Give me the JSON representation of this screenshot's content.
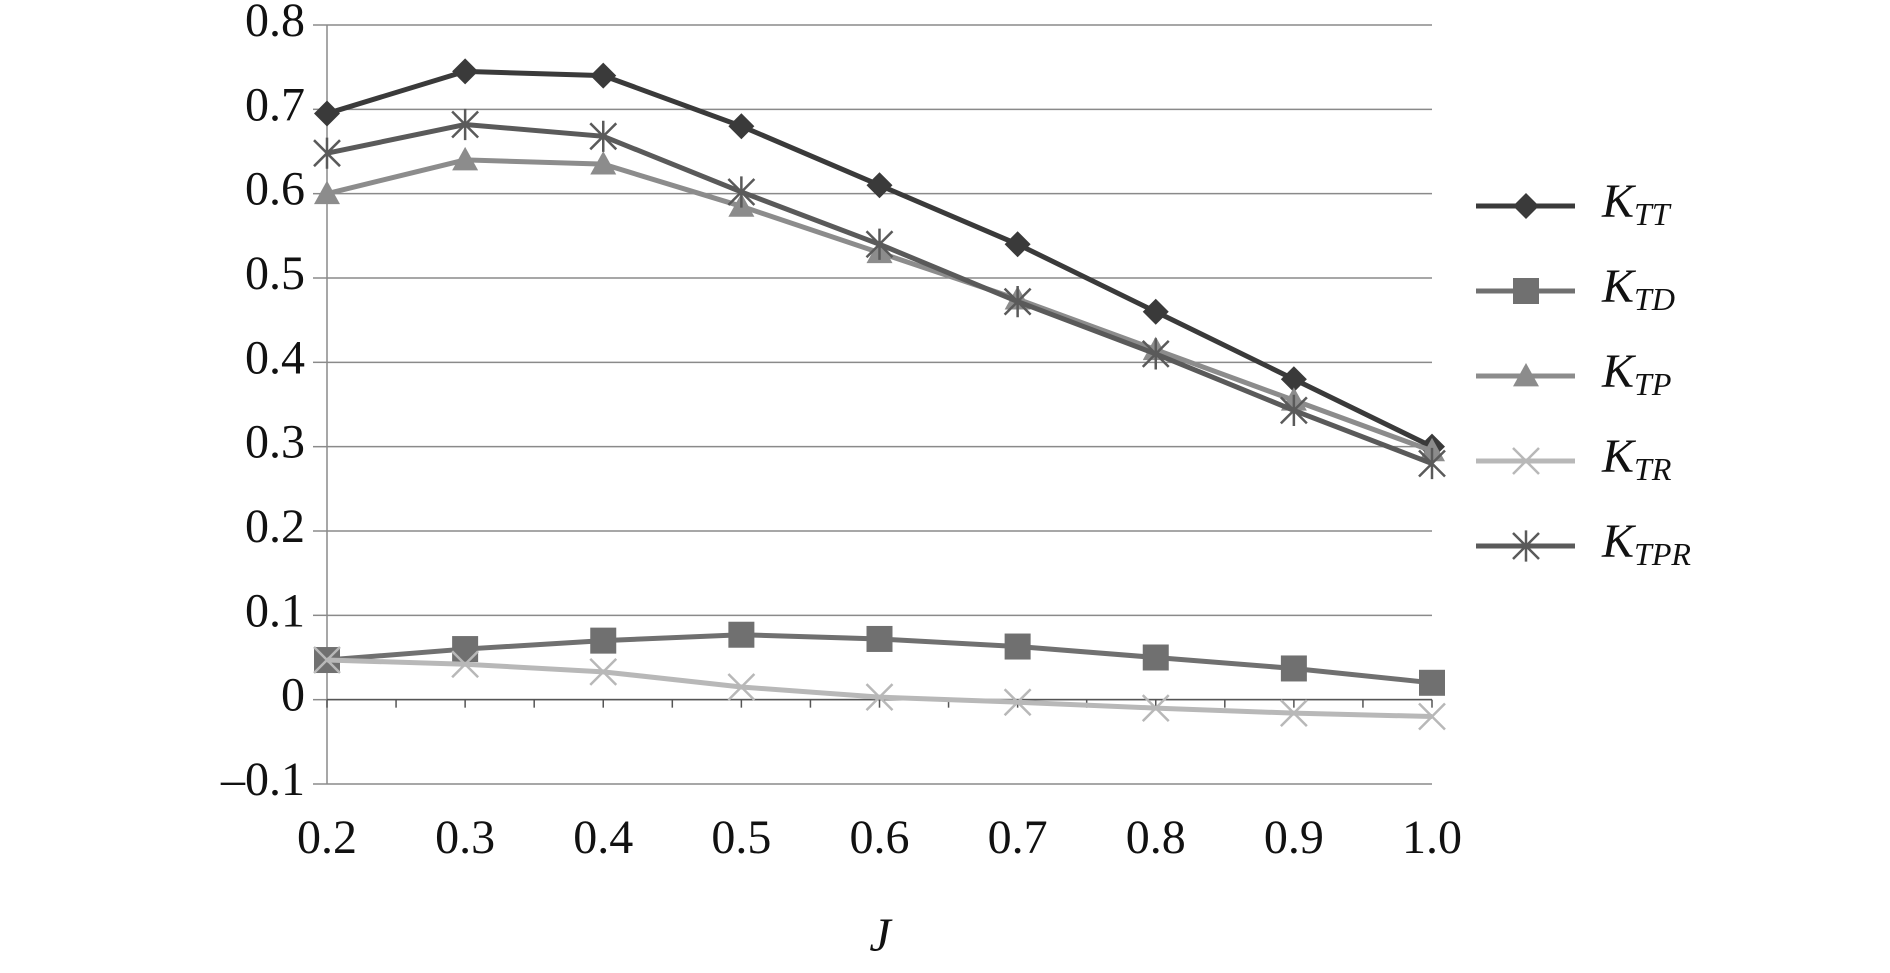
{
  "chart_data": {
    "type": "line",
    "x_label": "J",
    "categories": [
      "0.2",
      "0.3",
      "0.4",
      "0.5",
      "0.6",
      "0.7",
      "0.8",
      "0.9",
      "1.0"
    ],
    "series": [
      {
        "name": "KTT",
        "color": "#3a3a3a",
        "marker": "diamond",
        "values": [
          0.695,
          0.745,
          0.74,
          0.68,
          0.61,
          0.54,
          0.46,
          0.38,
          0.3
        ]
      },
      {
        "name": "KTD",
        "color": "#707070",
        "marker": "square",
        "values": [
          0.047,
          0.06,
          0.07,
          0.077,
          0.072,
          0.063,
          0.05,
          0.037,
          0.02
        ]
      },
      {
        "name": "KTP",
        "color": "#8c8c8c",
        "marker": "triangle",
        "values": [
          0.6,
          0.64,
          0.635,
          0.585,
          0.53,
          0.475,
          0.415,
          0.355,
          0.295
        ]
      },
      {
        "name": "KTR",
        "color": "#b8b8b8",
        "marker": "cross",
        "values": [
          0.047,
          0.042,
          0.033,
          0.015,
          0.003,
          -0.003,
          -0.01,
          -0.016,
          -0.02
        ]
      },
      {
        "name": "KTPR",
        "color": "#5a5a5a",
        "marker": "asterisk",
        "values": [
          0.648,
          0.682,
          0.668,
          0.602,
          0.54,
          0.472,
          0.41,
          0.343,
          0.28
        ]
      }
    ],
    "ylim": [
      -0.1,
      0.8
    ],
    "yticks": [
      {
        "value": -0.1,
        "label": "–0.1"
      },
      0,
      0.1,
      0.2,
      0.3,
      0.4,
      0.5,
      0.6,
      0.7,
      0.8
    ],
    "grid": true,
    "legend": "right"
  }
}
